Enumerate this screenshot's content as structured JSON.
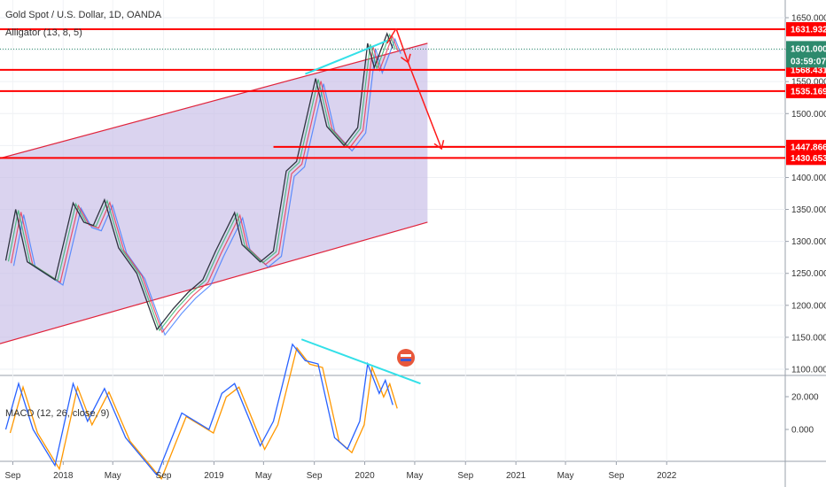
{
  "header": {
    "title": "Gold Spot / U.S. Dollar, 1D, OANDA",
    "indicator": "Alligator (13, 8, 5)"
  },
  "macd": {
    "label": "MACD (12, 26, close, 9)",
    "ticks": [
      {
        "value": 20,
        "label": "20.000"
      },
      {
        "value": 0,
        "label": "0.000"
      }
    ]
  },
  "colors": {
    "horizontal_levels": "#ff0000",
    "channel_fill": "#c6bce6",
    "channel_line": "#e0243c",
    "trendline": "#33e0e8",
    "arrows": "#ff1a1a",
    "current_price_badge": "#2d8a6d",
    "macd_line": "#2962ff",
    "signal_line": "#ff9800"
  },
  "chart_data": {
    "type": "line",
    "y_axis": {
      "min": 1100,
      "max": 1650,
      "ticks": [
        "1650.000",
        "1600.000",
        "1550.000",
        "1500.000",
        "1450.000",
        "1400.000",
        "1350.000",
        "1300.000",
        "1250.000",
        "1200.000",
        "1150.000",
        "1100.000"
      ]
    },
    "x_axis": {
      "labels": [
        "Sep",
        "2018",
        "May",
        "Sep",
        "2019",
        "May",
        "Sep",
        "2020",
        "May",
        "Sep",
        "2021",
        "May",
        "Sep",
        "2022"
      ]
    },
    "current_price": {
      "value": "1601.000",
      "countdown": "03:59:07"
    },
    "horizontal_levels": [
      {
        "value": 1631.932,
        "label": "1631.932"
      },
      {
        "value": 1568.431,
        "label": "1568.431"
      },
      {
        "value": 1535.169,
        "label": "1535.169"
      },
      {
        "value": 1447.866,
        "label": "1447.866"
      },
      {
        "value": 1430.653,
        "label": "1430.653"
      }
    ],
    "price_path": [
      [
        "2017-08-15",
        1270
      ],
      [
        "2017-09-08",
        1350
      ],
      [
        "2017-10-06",
        1268
      ],
      [
        "2017-12-12",
        1240
      ],
      [
        "2018-01-25",
        1360
      ],
      [
        "2018-02-20",
        1330
      ],
      [
        "2018-03-15",
        1325
      ],
      [
        "2018-04-11",
        1365
      ],
      [
        "2018-05-15",
        1290
      ],
      [
        "2018-06-28",
        1250
      ],
      [
        "2018-08-16",
        1162
      ],
      [
        "2018-09-25",
        1195
      ],
      [
        "2018-10-30",
        1220
      ],
      [
        "2018-12-05",
        1240
      ],
      [
        "2019-01-05",
        1285
      ],
      [
        "2019-02-20",
        1345
      ],
      [
        "2019-03-10",
        1295
      ],
      [
        "2019-04-23",
        1268
      ],
      [
        "2019-05-25",
        1285
      ],
      [
        "2019-06-25",
        1410
      ],
      [
        "2019-07-20",
        1425
      ],
      [
        "2019-09-04",
        1555
      ],
      [
        "2019-10-01",
        1480
      ],
      [
        "2019-11-12",
        1450
      ],
      [
        "2019-12-15",
        1478
      ],
      [
        "2020-01-08",
        1610
      ],
      [
        "2020-01-24",
        1572
      ],
      [
        "2020-02-24",
        1625
      ],
      [
        "2020-03-09",
        1602
      ]
    ],
    "channel": {
      "upper": [
        [
          "2017-08-01",
          1430
        ],
        [
          "2020-06-01",
          1610
        ]
      ],
      "lower": [
        [
          "2017-08-01",
          1140
        ],
        [
          "2020-06-01",
          1330
        ]
      ]
    },
    "trendlines": [
      {
        "from": [
          "2019-08-10",
          1562
        ],
        "to": [
          "2020-02-24",
          1614
        ]
      }
    ],
    "projection_arrows": [
      {
        "from": [
          "2020-02-24",
          1610
        ],
        "to": [
          "2020-03-17",
          1633
        ]
      },
      {
        "from": [
          "2020-03-17",
          1633
        ],
        "to": [
          "2020-04-15",
          1580
        ]
      },
      {
        "from": [
          "2020-04-15",
          1580
        ],
        "to": [
          "2020-07-05",
          1445
        ]
      }
    ],
    "macd_series": {
      "macd_path": [
        [
          "2017-08-15",
          0
        ],
        [
          "2017-09-15",
          28
        ],
        [
          "2017-10-20",
          0
        ],
        [
          "2017-12-12",
          -22
        ],
        [
          "2018-01-25",
          28
        ],
        [
          "2018-03-01",
          5
        ],
        [
          "2018-04-11",
          25
        ],
        [
          "2018-06-01",
          -5
        ],
        [
          "2018-08-16",
          -28
        ],
        [
          "2018-10-15",
          10
        ],
        [
          "2018-12-20",
          0
        ],
        [
          "2019-01-20",
          22
        ],
        [
          "2019-02-20",
          28
        ],
        [
          "2019-04-23",
          -10
        ],
        [
          "2019-05-25",
          5
        ],
        [
          "2019-07-10",
          52
        ],
        [
          "2019-08-10",
          42
        ],
        [
          "2019-09-10",
          40
        ],
        [
          "2019-10-20",
          -5
        ],
        [
          "2019-11-20",
          -12
        ],
        [
          "2019-12-20",
          5
        ],
        [
          "2020-01-08",
          40
        ],
        [
          "2020-02-05",
          22
        ],
        [
          "2020-02-20",
          30
        ],
        [
          "2020-03-09",
          15
        ]
      ],
      "trendline": {
        "from": [
          "2019-08-01",
          55
        ],
        "to": [
          "2020-05-15",
          28
        ]
      }
    }
  }
}
